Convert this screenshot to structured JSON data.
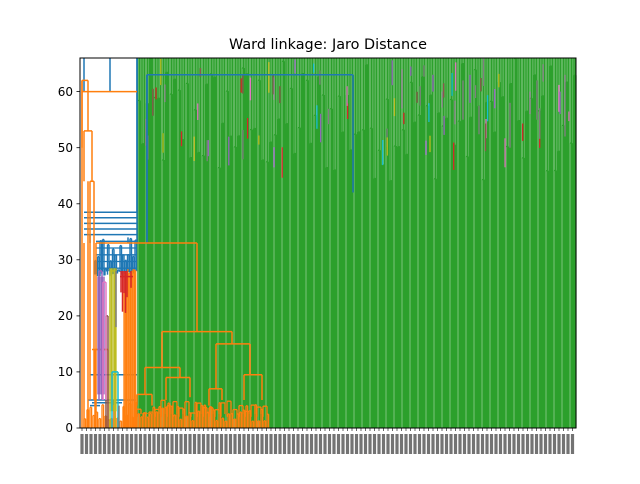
{
  "chart_data": {
    "type": "dendrogram",
    "title": "Ward linkage: Jaro Distance",
    "xlabel": "",
    "ylabel": "",
    "ylim": [
      0,
      66
    ],
    "yticks": [
      0,
      10,
      20,
      30,
      40,
      50,
      60
    ],
    "grid": false,
    "leaf_tick_labels": "dense, overlapping (unreadable)",
    "clusters": [
      {
        "color": "#1f77b4",
        "role": "upper link lines",
        "link_heights": [
          33,
          34.5,
          35.5,
          36.5,
          37.5,
          38.5,
          42,
          63
        ]
      },
      {
        "color": "#ff7f0e",
        "role": "left cluster",
        "link_heights": [
          2.5,
          4,
          6,
          8,
          9.5,
          11,
          15,
          17,
          33,
          44,
          53,
          60,
          62
        ]
      },
      {
        "color": "#2ca02c",
        "role": "large right cluster",
        "link_heights": [
          44,
          47,
          50,
          55,
          60,
          64,
          66
        ]
      },
      {
        "color": "#d62728",
        "role": "small cluster",
        "link_heights": [
          25,
          28
        ]
      },
      {
        "color": "#9467bd",
        "role": "small cluster",
        "link_heights": [
          28
        ]
      },
      {
        "color": "#8c564b",
        "role": "small cluster",
        "link_heights": [
          20
        ]
      },
      {
        "color": "#e377c2",
        "role": "small cluster",
        "link_heights": [
          26
        ]
      },
      {
        "color": "#7f7f7f",
        "role": "small cluster",
        "link_heights": [
          28
        ]
      },
      {
        "color": "#bcbd22",
        "role": "small cluster",
        "link_heights": [
          29
        ]
      },
      {
        "color": "#17becf",
        "role": "small cluster",
        "link_heights": [
          10
        ]
      }
    ]
  }
}
